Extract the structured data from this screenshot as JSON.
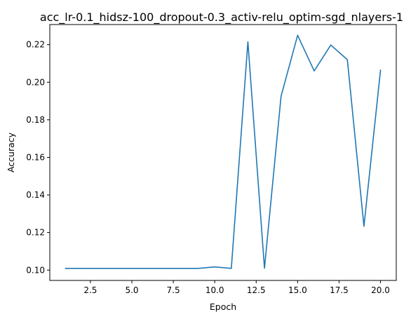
{
  "chart_data": {
    "type": "line",
    "title": "acc_lr-0.1_hidsz-100_dropout-0.3_activ-relu_optim-sgd_nlayers-1",
    "xlabel": "Epoch",
    "ylabel": "Accuracy",
    "xlim": [
      0.05,
      20.95
    ],
    "ylim": [
      0.0945,
      0.2307
    ],
    "xticks": [
      2.5,
      5.0,
      7.5,
      10.0,
      12.5,
      15.0,
      17.5,
      20.0
    ],
    "xtick_labels": [
      "2.5",
      "5.0",
      "7.5",
      "10.0",
      "12.5",
      "15.0",
      "17.5",
      "20.0"
    ],
    "yticks": [
      0.1,
      0.12,
      0.14,
      0.16,
      0.18,
      0.2,
      0.22
    ],
    "ytick_labels": [
      "0.10",
      "0.12",
      "0.14",
      "0.16",
      "0.18",
      "0.20",
      "0.22"
    ],
    "grid": false,
    "series": [
      {
        "color": "#1f77b4",
        "x": [
          1,
          2,
          3,
          4,
          5,
          6,
          7,
          8,
          9,
          10,
          11,
          12,
          13,
          14,
          15,
          16,
          17,
          18,
          19,
          20
        ],
        "values": [
          0.1009,
          0.1009,
          0.1009,
          0.1009,
          0.1009,
          0.1009,
          0.1009,
          0.1009,
          0.1009,
          0.1017,
          0.1009,
          0.2215,
          0.101,
          0.1925,
          0.225,
          0.206,
          0.2198,
          0.212,
          0.1233,
          0.2064
        ]
      }
    ]
  }
}
